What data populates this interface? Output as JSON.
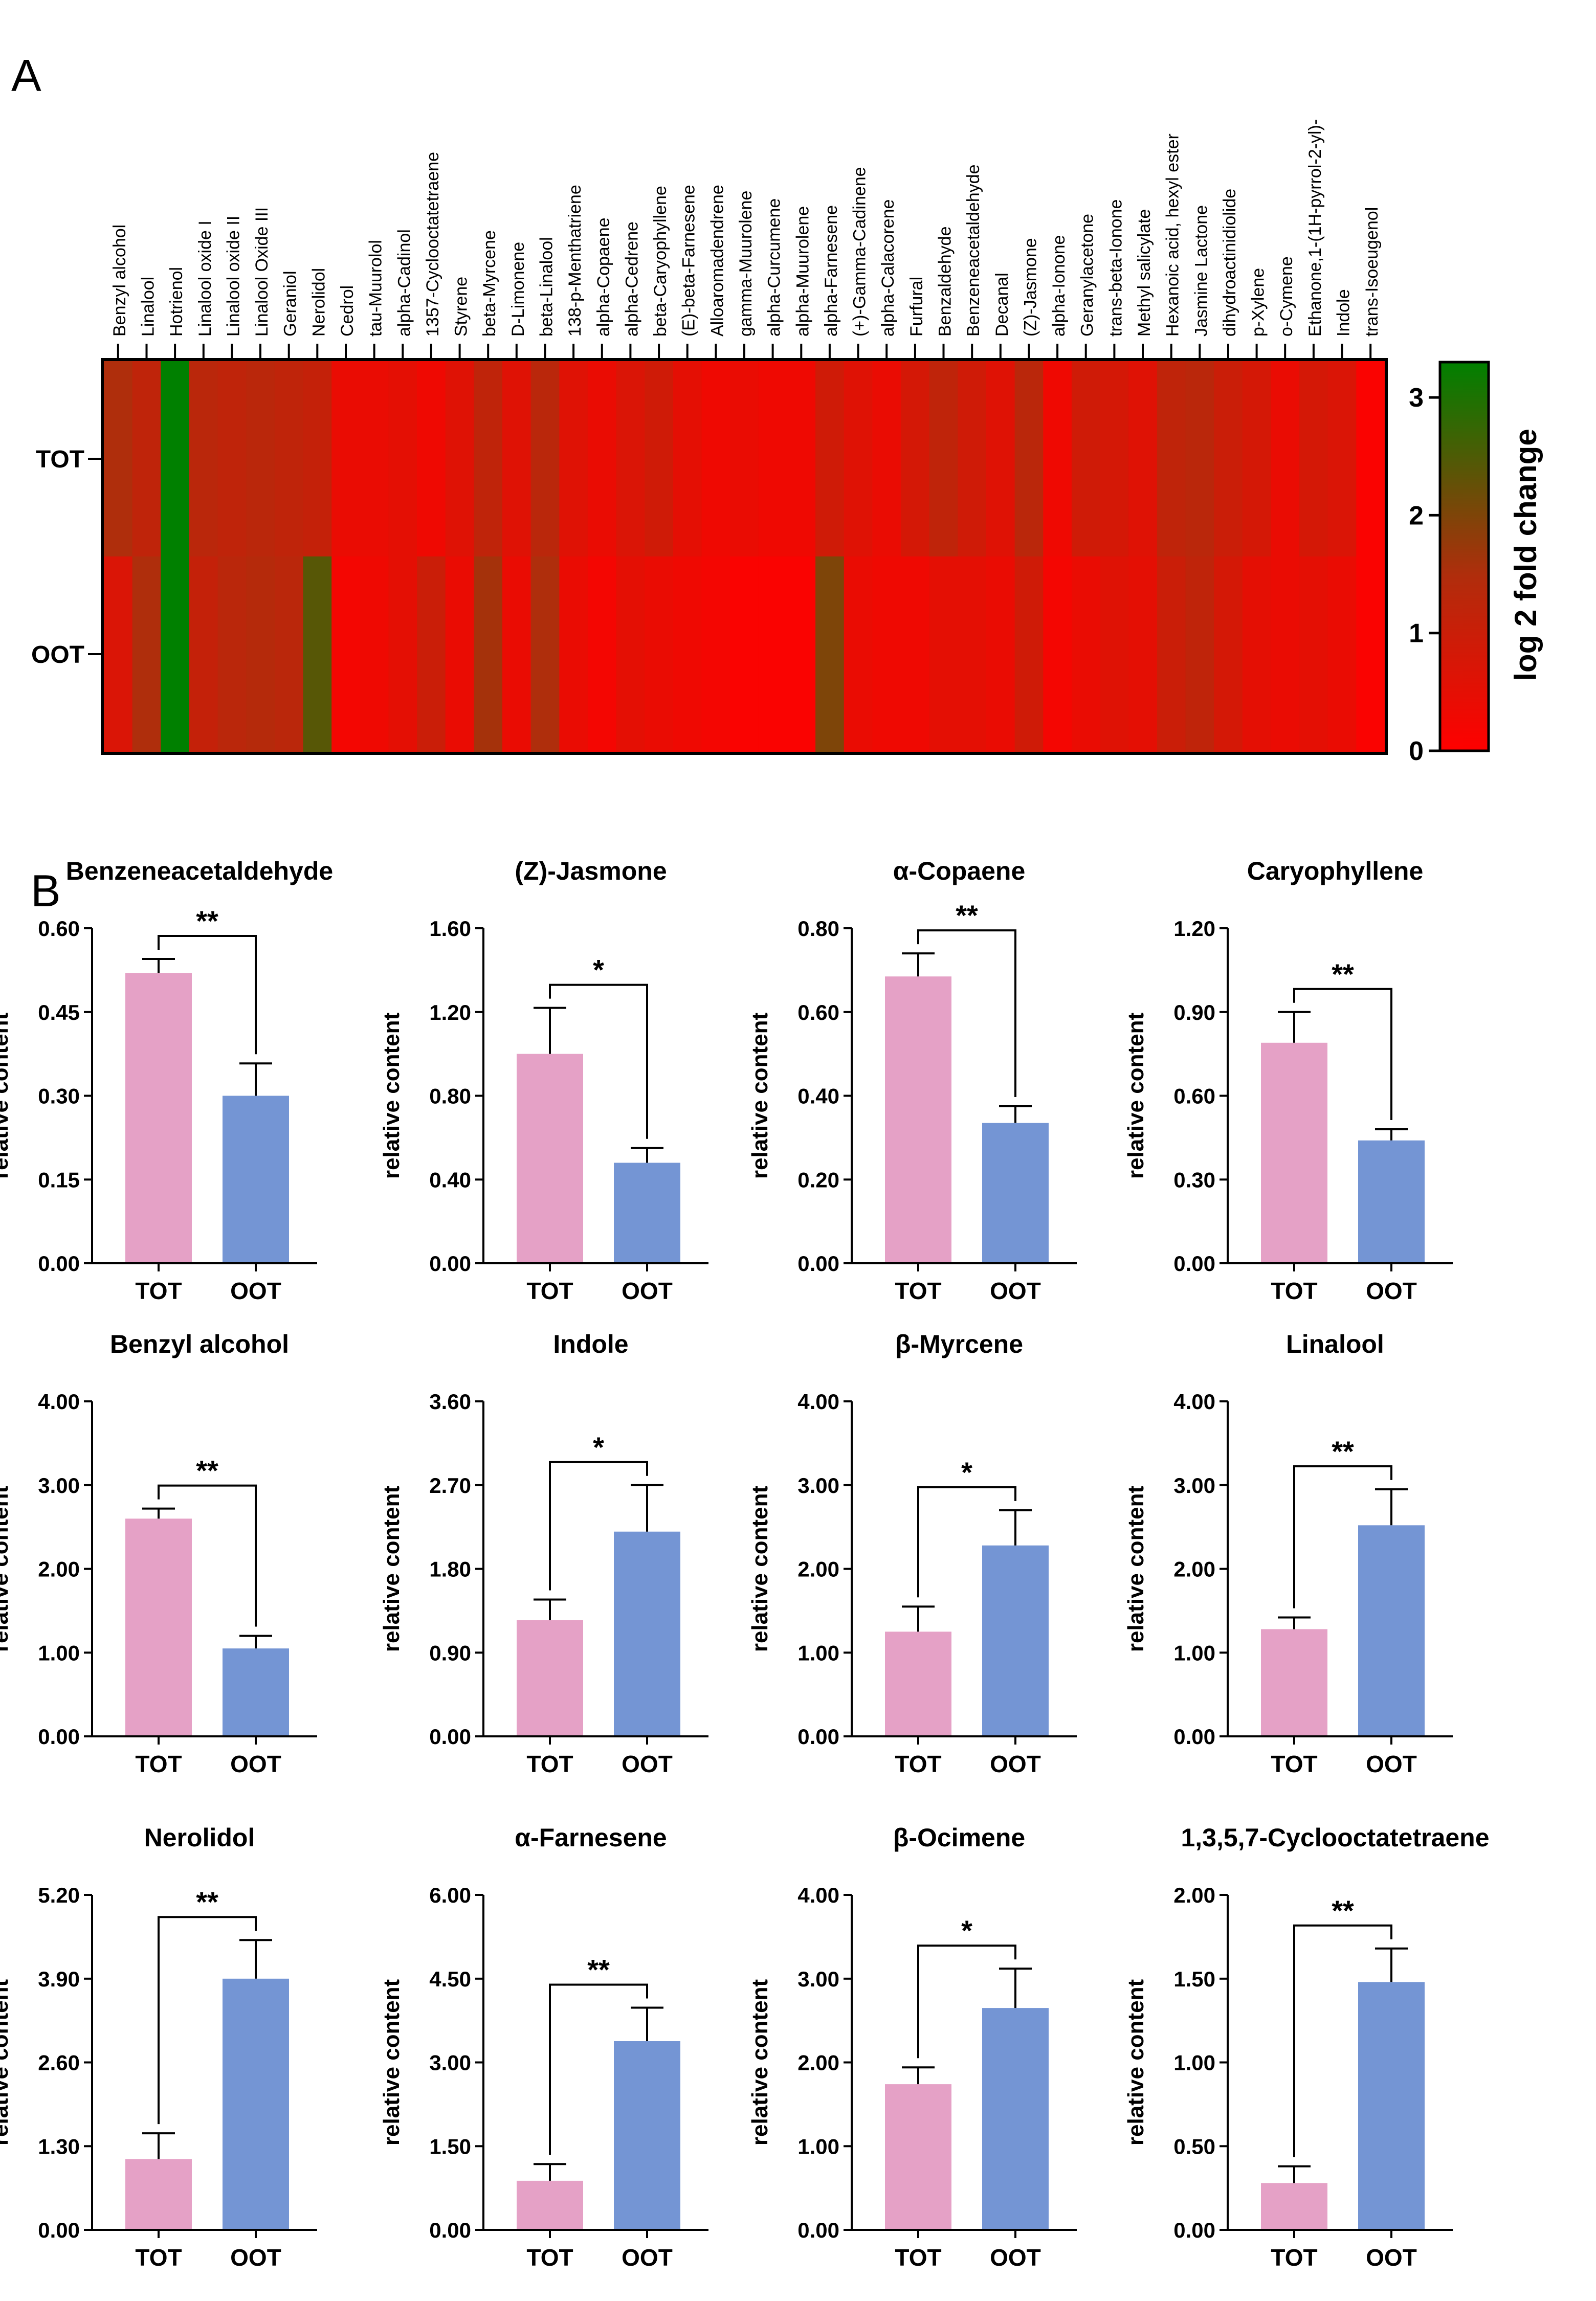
{
  "panels": {
    "a_label": "A",
    "b_label": "B"
  },
  "heatmap": {
    "type": "heatmap",
    "rows": [
      "TOT",
      "OOT"
    ],
    "columns": [
      "Benzyl alcohol",
      "Linalool",
      "Hotrienol",
      "Linalool oxide I",
      "Linalool oxide II",
      "Linalool Oxide III",
      "Geraniol",
      "Nerolidol",
      "Cedrol",
      "tau-Muurolol",
      "alpha-Cadinol",
      "1357-Cyclooctatetraene",
      "Styrene",
      "beta-Myrcene",
      "D-Limonene",
      "beta-Linalool",
      "138-p-Menthatriene",
      "alpha-Copaene",
      "alpha-Cedrene",
      "beta-Caryophyllene",
      "(E)-beta-Farnesene",
      "Alloaromadendrene",
      "gamma-Muurolene",
      "alpha-Curcumene",
      "alpha-Muurolene",
      "alpha-Farnesene",
      "(+)-Gamma-Cadinene",
      "alpha-Calacorene",
      "Furfural",
      "Benzaldehyde",
      "Benzeneacetaldehyde",
      "Decanal",
      "(Z)-Jasmone",
      "alpha-Ionone",
      "Geranylacetone",
      "trans-beta-Ionone",
      "Methyl salicylate",
      "Hexanoic acid, hexyl ester",
      "Jasmine Lactone",
      "dihydroactinidiolide",
      "p-Xylene",
      "o-Cymene",
      "Ethanone,1-(1H-pyrrol-2-yl)-",
      "Indole",
      "trans-Isoeugenol"
    ],
    "values": [
      [
        1.5,
        1.2,
        3.3,
        1.3,
        1.2,
        1.3,
        1.2,
        1.1,
        0.4,
        0.4,
        0.5,
        0.3,
        0.6,
        1.2,
        0.6,
        1.3,
        0.6,
        0.4,
        0.7,
        0.9,
        0.5,
        0.3,
        0.4,
        0.3,
        0.3,
        0.9,
        0.6,
        0.4,
        0.8,
        1.2,
        0.9,
        0.6,
        1.3,
        0.3,
        0.9,
        0.8,
        0.6,
        1.2,
        1.3,
        1.0,
        0.8,
        0.4,
        0.8,
        0.7,
        0.1
      ],
      [
        0.7,
        1.5,
        3.3,
        1.1,
        1.3,
        1.4,
        1.3,
        2.4,
        0.2,
        0.3,
        0.5,
        1.0,
        0.4,
        1.6,
        0.4,
        1.5,
        0.4,
        0.2,
        0.5,
        0.4,
        0.3,
        0.2,
        0.1,
        0.1,
        0.1,
        2.0,
        0.4,
        0.3,
        0.3,
        0.5,
        0.5,
        0.4,
        0.9,
        0.2,
        0.4,
        0.6,
        0.5,
        1.0,
        1.2,
        0.8,
        0.5,
        0.4,
        0.5,
        0.4,
        0.1
      ]
    ],
    "colorbar": {
      "label": "log 2 fold change",
      "min": 0,
      "max": 3.3,
      "ticks": [
        "0",
        "1",
        "2",
        "3"
      ],
      "colors": {
        "low": "#ff0000",
        "mid": "#b02d0c",
        "high": "#008000"
      }
    }
  },
  "chart_data": [
    {
      "type": "bar",
      "title": "Benzeneacetaldehyde",
      "categories": [
        "TOT",
        "OOT"
      ],
      "values": [
        0.52,
        0.3
      ],
      "errors": [
        0.025,
        0.058
      ],
      "ylabel": "relative content",
      "ylim": [
        0,
        0.6
      ],
      "ytick_labels": [
        "0.00",
        "0.15",
        "0.30",
        "0.45",
        "0.60"
      ],
      "significance": "**"
    },
    {
      "type": "bar",
      "title": "(Z)-Jasmone",
      "categories": [
        "TOT",
        "OOT"
      ],
      "values": [
        1.0,
        0.48
      ],
      "errors": [
        0.22,
        0.07
      ],
      "ylabel": "relative content",
      "ylim": [
        0,
        1.6
      ],
      "ytick_labels": [
        "0.00",
        "0.40",
        "0.80",
        "1.20",
        "1.60"
      ],
      "significance": "*"
    },
    {
      "type": "bar",
      "title": "α-Copaene",
      "categories": [
        "TOT",
        "OOT"
      ],
      "values": [
        0.685,
        0.335
      ],
      "errors": [
        0.055,
        0.04
      ],
      "ylabel": "relative content",
      "ylim": [
        0,
        0.8
      ],
      "ytick_labels": [
        "0.00",
        "0.20",
        "0.40",
        "0.60",
        "0.80"
      ],
      "significance": "**"
    },
    {
      "type": "bar",
      "title": "Caryophyllene",
      "categories": [
        "TOT",
        "OOT"
      ],
      "values": [
        0.79,
        0.44
      ],
      "errors": [
        0.11,
        0.04
      ],
      "ylabel": "relative content",
      "ylim": [
        0,
        1.2
      ],
      "ytick_labels": [
        "0.00",
        "0.30",
        "0.60",
        "0.90",
        "1.20"
      ],
      "significance": "**"
    },
    {
      "type": "bar",
      "title": "Benzyl alcohol",
      "categories": [
        "TOT",
        "OOT"
      ],
      "values": [
        2.6,
        1.05
      ],
      "errors": [
        0.12,
        0.15
      ],
      "ylabel": "relative content",
      "ylim": [
        0,
        4.0
      ],
      "ytick_labels": [
        "0.00",
        "1.00",
        "2.00",
        "3.00",
        "4.00"
      ],
      "significance": "**"
    },
    {
      "type": "bar",
      "title": "Indole",
      "categories": [
        "TOT",
        "OOT"
      ],
      "values": [
        1.25,
        2.2
      ],
      "errors": [
        0.22,
        0.5
      ],
      "ylabel": "relative content",
      "ylim": [
        0,
        3.6
      ],
      "ytick_labels": [
        "0.00",
        "0.90",
        "1.80",
        "2.70",
        "3.60"
      ],
      "significance": "*"
    },
    {
      "type": "bar",
      "title": "β-Myrcene",
      "categories": [
        "TOT",
        "OOT"
      ],
      "values": [
        1.25,
        2.28
      ],
      "errors": [
        0.3,
        0.42
      ],
      "ylabel": "relative content",
      "ylim": [
        0,
        4.0
      ],
      "ytick_labels": [
        "0.00",
        "1.00",
        "2.00",
        "3.00",
        "4.00"
      ],
      "significance": "*"
    },
    {
      "type": "bar",
      "title": "Linalool",
      "categories": [
        "TOT",
        "OOT"
      ],
      "values": [
        1.28,
        2.52
      ],
      "errors": [
        0.14,
        0.43
      ],
      "ylabel": "relative content",
      "ylim": [
        0,
        4.0
      ],
      "ytick_labels": [
        "0.00",
        "1.00",
        "2.00",
        "3.00",
        "4.00"
      ],
      "significance": "**"
    },
    {
      "type": "bar",
      "title": "Nerolidol",
      "categories": [
        "TOT",
        "OOT"
      ],
      "values": [
        1.1,
        3.9
      ],
      "errors": [
        0.4,
        0.6
      ],
      "ylabel": "relative content",
      "ylim": [
        0,
        5.2
      ],
      "ytick_labels": [
        "0.00",
        "1.30",
        "2.60",
        "3.90",
        "5.20"
      ],
      "significance": "**"
    },
    {
      "type": "bar",
      "title": "α-Farnesene",
      "categories": [
        "TOT",
        "OOT"
      ],
      "values": [
        0.88,
        3.38
      ],
      "errors": [
        0.3,
        0.6
      ],
      "ylabel": "relative content",
      "ylim": [
        0,
        6.0
      ],
      "ytick_labels": [
        "0.00",
        "1.50",
        "3.00",
        "4.50",
        "6.00"
      ],
      "significance": "**"
    },
    {
      "type": "bar",
      "title": "β-Ocimene",
      "categories": [
        "TOT",
        "OOT"
      ],
      "values": [
        1.74,
        2.65
      ],
      "errors": [
        0.2,
        0.47
      ],
      "ylabel": "relative content",
      "ylim": [
        0,
        4.0
      ],
      "ytick_labels": [
        "0.00",
        "1.00",
        "2.00",
        "3.00",
        "4.00"
      ],
      "significance": "*"
    },
    {
      "type": "bar",
      "title": "1,3,5,7-Cyclooctatetraene",
      "categories": [
        "TOT",
        "OOT"
      ],
      "values": [
        0.28,
        1.48
      ],
      "errors": [
        0.1,
        0.2
      ],
      "ylabel": "relative content",
      "ylim": [
        0,
        2.0
      ],
      "ytick_labels": [
        "0.00",
        "0.50",
        "1.00",
        "1.50",
        "2.00"
      ],
      "significance": "**"
    }
  ],
  "colors": {
    "tot_bar": "#e5a1c6",
    "oot_bar": "#7495d4",
    "axis": "#000000"
  }
}
